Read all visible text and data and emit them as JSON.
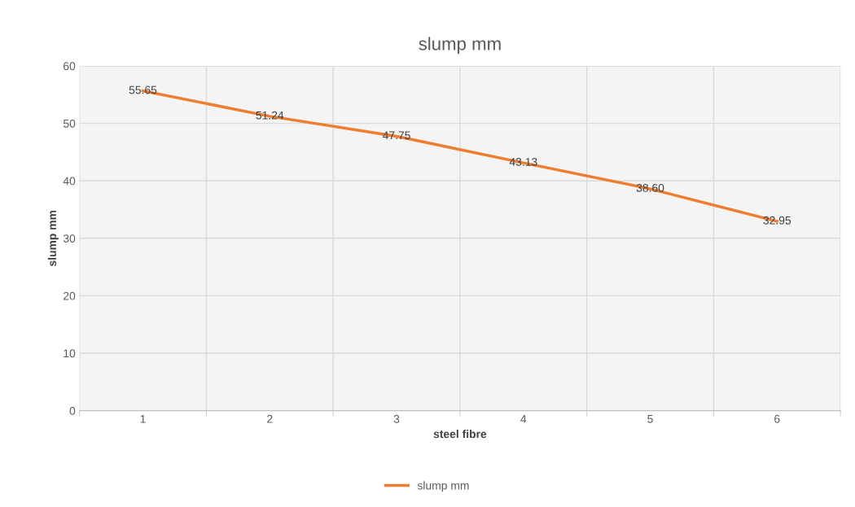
{
  "chart_data": {
    "type": "line",
    "title": "slump mm",
    "xlabel": "steel fibre",
    "ylabel": "slump mm",
    "categories": [
      "1",
      "2",
      "3",
      "4",
      "5",
      "6"
    ],
    "series": [
      {
        "name": "slump mm",
        "color": "#ed7d31",
        "values": [
          55.65,
          51.24,
          47.75,
          43.13,
          38.6,
          32.95
        ],
        "value_labels": [
          "55.65",
          "51.24",
          "47.75",
          "43.13",
          "38.60",
          "32.95"
        ]
      }
    ],
    "ylim": [
      0,
      60
    ],
    "yticks": [
      0,
      10,
      20,
      30,
      40,
      50,
      60
    ],
    "grid": true,
    "legend": "bottom",
    "marker": "none",
    "line_style": "solid"
  }
}
